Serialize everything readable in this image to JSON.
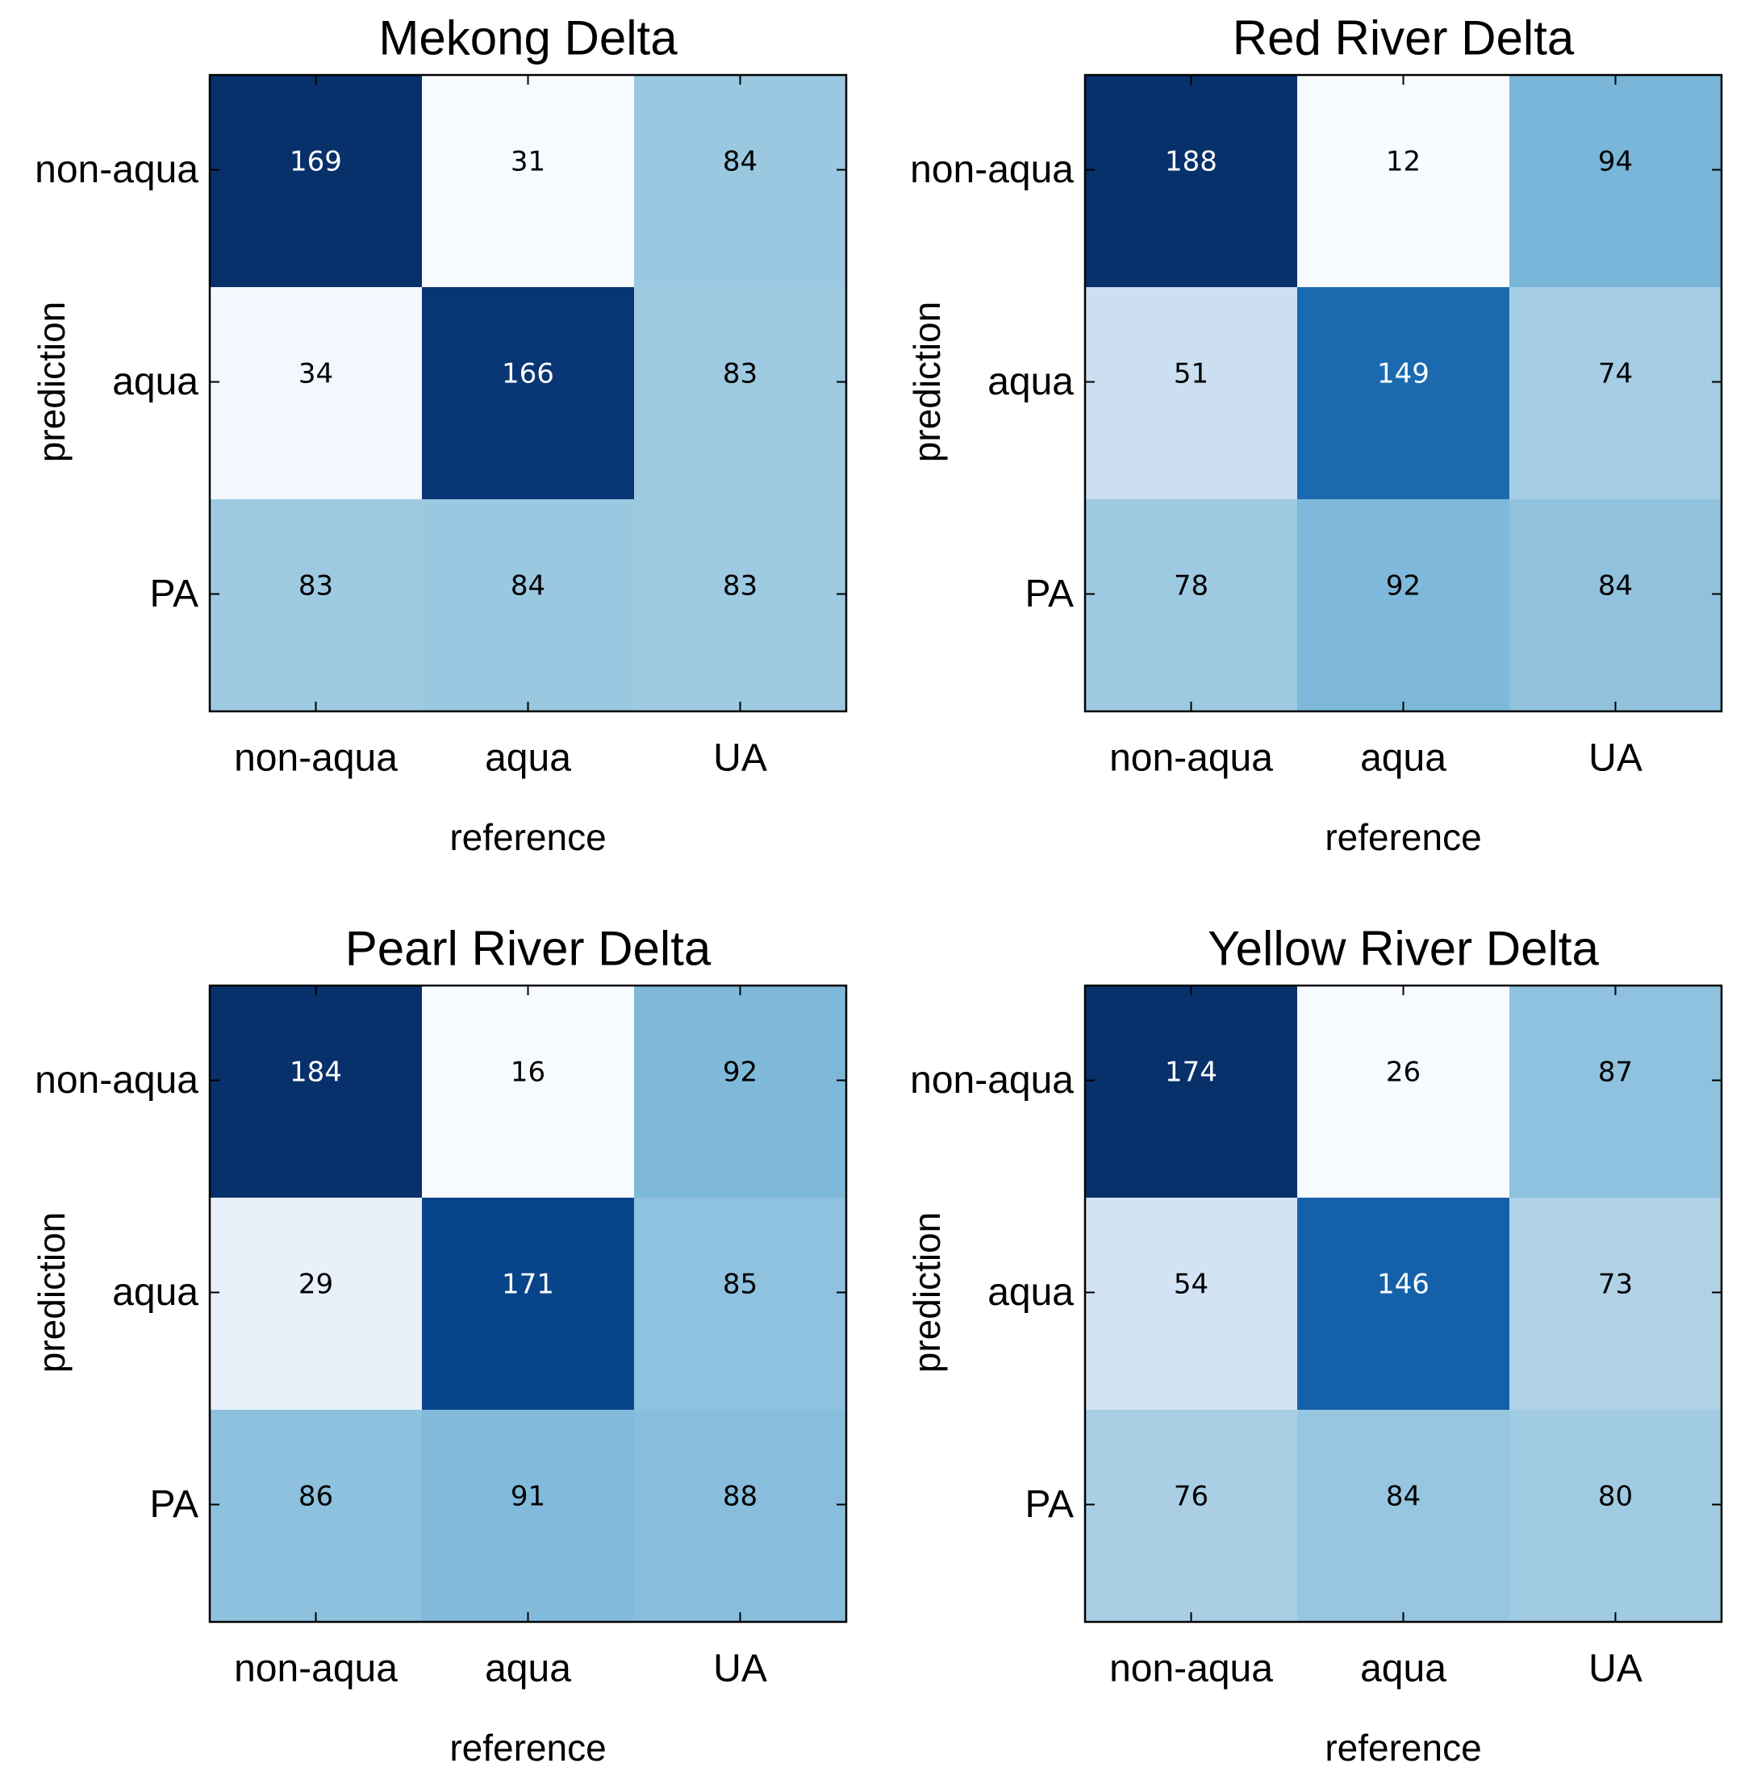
{
  "colors": {
    "colormap": "Blues",
    "text_dark": "#000000",
    "text_light": "#ffffff",
    "frame": "#000000",
    "background": "#ffffff"
  },
  "chart_data": [
    {
      "type": "heatmap",
      "title": "Mekong Delta",
      "xlabel": "reference",
      "ylabel": "prediction",
      "xticklabels": [
        "non-aqua",
        "aqua",
        "UA"
      ],
      "yticklabels": [
        "non-aqua",
        "aqua",
        "PA"
      ],
      "values": [
        [
          169,
          31,
          84
        ],
        [
          34,
          166,
          83
        ],
        [
          83,
          84,
          83
        ]
      ]
    },
    {
      "type": "heatmap",
      "title": "Red River Delta",
      "xlabel": "reference",
      "ylabel": "prediction",
      "xticklabels": [
        "non-aqua",
        "aqua",
        "UA"
      ],
      "yticklabels": [
        "non-aqua",
        "aqua",
        "PA"
      ],
      "values": [
        [
          188,
          12,
          94
        ],
        [
          51,
          149,
          74
        ],
        [
          78,
          92,
          84
        ]
      ]
    },
    {
      "type": "heatmap",
      "title": "Pearl River Delta",
      "xlabel": "reference",
      "ylabel": "prediction",
      "xticklabels": [
        "non-aqua",
        "aqua",
        "UA"
      ],
      "yticklabels": [
        "non-aqua",
        "aqua",
        "PA"
      ],
      "values": [
        [
          184,
          16,
          92
        ],
        [
          29,
          171,
          85
        ],
        [
          86,
          91,
          88
        ]
      ]
    },
    {
      "type": "heatmap",
      "title": "Yellow River Delta",
      "xlabel": "reference",
      "ylabel": "prediction",
      "xticklabels": [
        "non-aqua",
        "aqua",
        "UA"
      ],
      "yticklabels": [
        "non-aqua",
        "aqua",
        "PA"
      ],
      "values": [
        [
          174,
          26,
          87
        ],
        [
          54,
          146,
          73
        ],
        [
          76,
          84,
          80
        ]
      ]
    }
  ]
}
